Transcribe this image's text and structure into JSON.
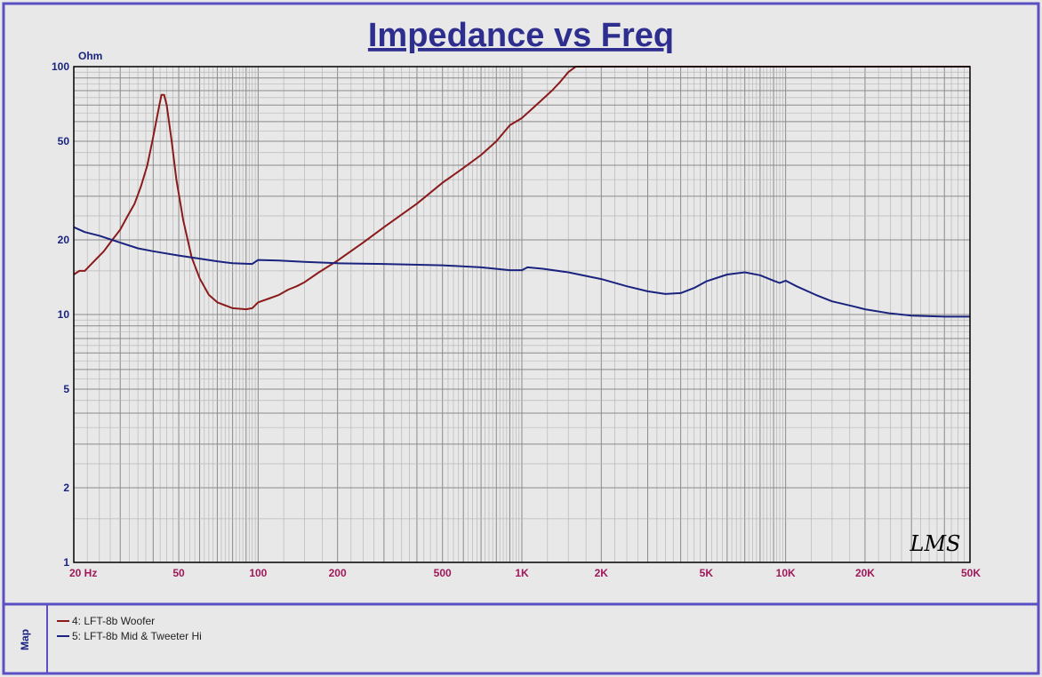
{
  "chart_data": {
    "type": "line",
    "title": "Impedance vs Freq",
    "ylabel": "Ohm",
    "xlabel": "",
    "x_scale": "log",
    "y_scale": "log",
    "xlim": [
      20,
      50000
    ],
    "ylim": [
      1,
      100
    ],
    "grid": true,
    "x_ticks": [
      {
        "value": 20,
        "label": "20  Hz"
      },
      {
        "value": 50,
        "label": "50"
      },
      {
        "value": 100,
        "label": "100"
      },
      {
        "value": 200,
        "label": "200"
      },
      {
        "value": 500,
        "label": "500"
      },
      {
        "value": 1000,
        "label": "1K"
      },
      {
        "value": 2000,
        "label": "2K"
      },
      {
        "value": 5000,
        "label": "5K"
      },
      {
        "value": 10000,
        "label": "10K"
      },
      {
        "value": 20000,
        "label": "20K"
      },
      {
        "value": 50000,
        "label": "50K"
      }
    ],
    "y_ticks": [
      {
        "value": 1,
        "label": "1"
      },
      {
        "value": 2,
        "label": "2"
      },
      {
        "value": 5,
        "label": "5"
      },
      {
        "value": 10,
        "label": "10"
      },
      {
        "value": 20,
        "label": "20"
      },
      {
        "value": 50,
        "label": "50"
      },
      {
        "value": 100,
        "label": "100"
      }
    ],
    "watermark": "LMS",
    "series": [
      {
        "name": "4: LFT-8b Woofer",
        "color": "#8b1a1a",
        "points": [
          [
            20,
            14.5
          ],
          [
            21,
            15
          ],
          [
            22,
            15
          ],
          [
            24,
            16.5
          ],
          [
            26,
            18
          ],
          [
            28,
            20
          ],
          [
            30,
            22
          ],
          [
            32,
            25
          ],
          [
            34,
            28
          ],
          [
            36,
            33
          ],
          [
            38,
            40
          ],
          [
            40,
            52
          ],
          [
            42,
            68
          ],
          [
            43,
            77
          ],
          [
            44,
            77
          ],
          [
            45,
            70
          ],
          [
            47,
            50
          ],
          [
            49,
            35
          ],
          [
            52,
            24
          ],
          [
            56,
            17
          ],
          [
            60,
            14
          ],
          [
            65,
            12
          ],
          [
            70,
            11.2
          ],
          [
            80,
            10.6
          ],
          [
            90,
            10.5
          ],
          [
            95,
            10.6
          ],
          [
            100,
            11.2
          ],
          [
            110,
            11.6
          ],
          [
            120,
            12
          ],
          [
            130,
            12.6
          ],
          [
            140,
            13
          ],
          [
            150,
            13.5
          ],
          [
            170,
            14.8
          ],
          [
            200,
            16.5
          ],
          [
            250,
            19.5
          ],
          [
            300,
            22.5
          ],
          [
            400,
            28
          ],
          [
            500,
            34
          ],
          [
            600,
            39
          ],
          [
            700,
            44
          ],
          [
            800,
            50
          ],
          [
            900,
            58
          ],
          [
            1000,
            62
          ],
          [
            1100,
            68
          ],
          [
            1200,
            74
          ],
          [
            1300,
            80
          ],
          [
            1400,
            87
          ],
          [
            1500,
            95
          ],
          [
            1600,
            100
          ],
          [
            50000,
            100
          ]
        ]
      },
      {
        "name": "5: LFT-8b Mid & Tweeter Hi",
        "color": "#1a237e",
        "points": [
          [
            20,
            22.5
          ],
          [
            22,
            21.5
          ],
          [
            25,
            20.8
          ],
          [
            30,
            19.5
          ],
          [
            35,
            18.5
          ],
          [
            40,
            18
          ],
          [
            50,
            17.3
          ],
          [
            60,
            16.8
          ],
          [
            70,
            16.4
          ],
          [
            80,
            16.1
          ],
          [
            95,
            16
          ],
          [
            100,
            16.6
          ],
          [
            120,
            16.5
          ],
          [
            150,
            16.3
          ],
          [
            200,
            16.1
          ],
          [
            300,
            16
          ],
          [
            500,
            15.8
          ],
          [
            700,
            15.5
          ],
          [
            900,
            15.1
          ],
          [
            1000,
            15.1
          ],
          [
            1050,
            15.5
          ],
          [
            1200,
            15.3
          ],
          [
            1500,
            14.8
          ],
          [
            2000,
            13.9
          ],
          [
            2500,
            13
          ],
          [
            3000,
            12.4
          ],
          [
            3500,
            12.1
          ],
          [
            4000,
            12.2
          ],
          [
            4500,
            12.8
          ],
          [
            5000,
            13.6
          ],
          [
            6000,
            14.5
          ],
          [
            7000,
            14.8
          ],
          [
            8000,
            14.4
          ],
          [
            9000,
            13.7
          ],
          [
            9500,
            13.4
          ],
          [
            10000,
            13.7
          ],
          [
            11000,
            13
          ],
          [
            13000,
            12
          ],
          [
            15000,
            11.3
          ],
          [
            18000,
            10.8
          ],
          [
            20000,
            10.5
          ],
          [
            25000,
            10.1
          ],
          [
            30000,
            9.9
          ],
          [
            40000,
            9.8
          ],
          [
            50000,
            9.8
          ]
        ]
      }
    ]
  },
  "legend": {
    "tab_label": "Map",
    "items": [
      {
        "label": "4: LFT-8b Woofer",
        "color": "#8b1a1a"
      },
      {
        "label": "5: LFT-8b Mid & Tweeter Hi",
        "color": "#1a237e"
      }
    ]
  }
}
